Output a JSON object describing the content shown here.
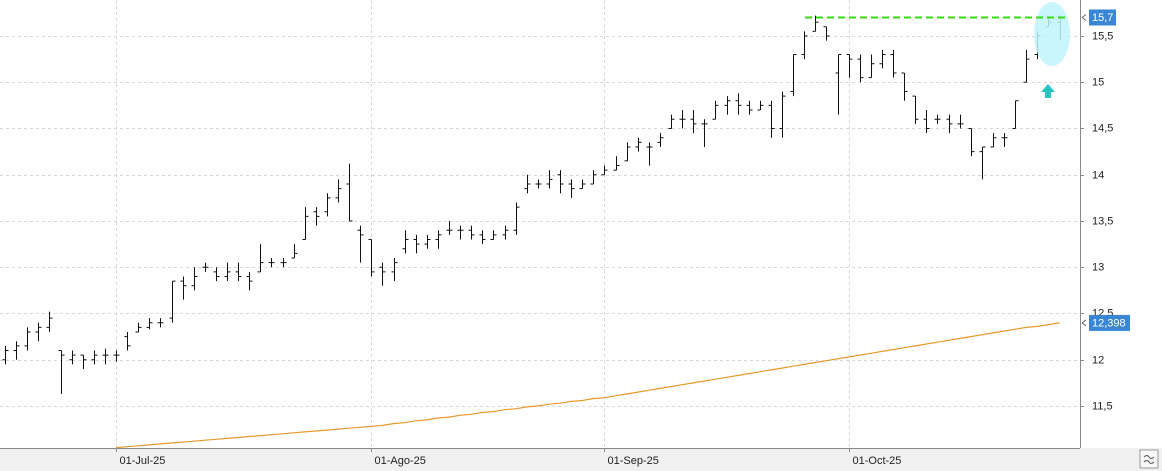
{
  "chart_data": {
    "type": "ohlc",
    "x": [
      null,
      null,
      null,
      null,
      null,
      null,
      null,
      null,
      null,
      null,
      "01-Jul-25",
      null,
      null,
      null,
      null,
      null,
      null,
      null,
      null,
      null,
      null,
      null,
      null,
      null,
      null,
      null,
      null,
      null,
      null,
      null,
      null,
      null,
      null,
      "01-Ago-25",
      null,
      null,
      null,
      null,
      null,
      null,
      null,
      null,
      null,
      null,
      null,
      null,
      null,
      null,
      null,
      null,
      null,
      null,
      null,
      null,
      "01-Sep-25",
      null,
      null,
      null,
      null,
      null,
      null,
      null,
      null,
      null,
      null,
      null,
      null,
      null,
      null,
      null,
      null,
      null,
      null,
      null,
      null,
      null,
      "01-Oct-25",
      null,
      null,
      null,
      null,
      null,
      null,
      null,
      null,
      null,
      null,
      null,
      null,
      null,
      null,
      null,
      null,
      null,
      null,
      null
    ],
    "open": [
      12.0,
      12.1,
      12.15,
      12.3,
      12.35,
      12.1,
      12.0,
      12.05,
      12.0,
      12.05,
      12.05,
      12.25,
      12.3,
      12.35,
      12.4,
      12.45,
      12.85,
      12.8,
      13.0,
      12.95,
      12.9,
      12.95,
      12.9,
      12.95,
      13.05,
      13.05,
      13.1,
      13.3,
      13.6,
      13.6,
      13.75,
      13.9,
      13.4,
      13.3,
      13.0,
      12.95,
      13.2,
      13.3,
      13.25,
      13.3,
      13.4,
      13.4,
      13.4,
      13.35,
      13.3,
      13.35,
      13.4,
      13.85,
      13.9,
      13.9,
      14.0,
      13.9,
      13.85,
      13.9,
      14.0,
      14.05,
      14.15,
      14.3,
      14.3,
      14.35,
      14.5,
      14.6,
      14.6,
      14.55,
      14.6,
      14.75,
      14.8,
      14.75,
      14.7,
      14.75,
      14.5,
      14.9,
      15.3,
      15.55,
      15.6,
      15.1,
      15.3,
      15.25,
      15.05,
      15.2,
      15.3,
      15.1,
      14.85,
      14.6,
      14.6,
      14.6,
      14.55,
      14.5,
      14.25,
      14.3,
      14.4,
      14.5,
      15.0,
      15.3,
      15.6,
      15.65
    ],
    "high": [
      12.15,
      12.2,
      12.35,
      12.4,
      12.52,
      12.1,
      12.1,
      12.05,
      12.1,
      12.12,
      12.1,
      12.3,
      12.4,
      12.45,
      12.45,
      12.85,
      12.9,
      13.0,
      13.05,
      13.0,
      13.05,
      13.05,
      12.95,
      13.25,
      13.1,
      13.1,
      13.25,
      13.65,
      13.65,
      13.8,
      13.95,
      14.12,
      13.45,
      13.3,
      13.05,
      13.1,
      13.4,
      13.35,
      13.35,
      13.4,
      13.5,
      13.45,
      13.45,
      13.4,
      13.4,
      13.45,
      13.7,
      14.0,
      13.95,
      14.05,
      14.05,
      13.95,
      13.95,
      14.05,
      14.1,
      14.2,
      14.35,
      14.4,
      14.35,
      14.45,
      14.65,
      14.7,
      14.7,
      14.6,
      14.8,
      14.85,
      14.88,
      14.8,
      14.8,
      14.8,
      14.9,
      15.3,
      15.55,
      15.72,
      15.6,
      15.3,
      15.3,
      15.3,
      15.3,
      15.35,
      15.35,
      15.1,
      14.85,
      14.7,
      14.65,
      14.65,
      14.65,
      14.5,
      14.3,
      14.45,
      14.45,
      14.8,
      15.35,
      15.55,
      15.7,
      15.72
    ],
    "low": [
      11.95,
      12.0,
      12.1,
      12.2,
      12.3,
      11.63,
      11.95,
      11.9,
      11.95,
      11.95,
      11.98,
      12.1,
      12.3,
      12.33,
      12.35,
      12.4,
      12.65,
      12.75,
      12.95,
      12.85,
      12.85,
      12.85,
      12.75,
      12.95,
      13.0,
      13.0,
      13.1,
      13.3,
      13.45,
      13.55,
      13.7,
      13.5,
      13.05,
      12.9,
      12.8,
      12.85,
      13.15,
      13.15,
      13.2,
      13.2,
      13.35,
      13.3,
      13.3,
      13.25,
      13.3,
      13.3,
      13.35,
      13.8,
      13.85,
      13.85,
      13.8,
      13.75,
      13.85,
      13.9,
      14.0,
      14.05,
      14.15,
      14.25,
      14.1,
      14.3,
      14.5,
      14.5,
      14.45,
      14.3,
      14.6,
      14.65,
      14.65,
      14.65,
      14.7,
      14.4,
      14.4,
      14.85,
      15.25,
      15.55,
      15.45,
      14.65,
      15.05,
      15.0,
      15.05,
      15.15,
      15.05,
      14.8,
      14.55,
      14.45,
      14.55,
      14.45,
      14.5,
      14.2,
      13.95,
      14.3,
      14.3,
      14.5,
      15.0,
      15.25,
      15.6,
      15.45
    ],
    "close": [
      12.1,
      12.15,
      12.3,
      12.35,
      12.45,
      12.05,
      12.05,
      12.0,
      12.05,
      12.05,
      12.05,
      12.15,
      12.35,
      12.4,
      12.4,
      12.85,
      12.8,
      12.9,
      13.0,
      12.9,
      12.95,
      12.9,
      12.85,
      13.05,
      13.05,
      13.05,
      13.15,
      13.55,
      13.55,
      13.75,
      13.85,
      13.5,
      13.35,
      12.95,
      12.95,
      13.05,
      13.3,
      13.25,
      13.3,
      13.35,
      13.4,
      13.4,
      13.35,
      13.3,
      13.35,
      13.4,
      13.65,
      13.9,
      13.9,
      13.95,
      13.9,
      13.85,
      13.9,
      14.0,
      14.05,
      14.1,
      14.3,
      14.35,
      14.3,
      14.4,
      14.6,
      14.6,
      14.55,
      14.55,
      14.75,
      14.8,
      14.75,
      14.7,
      14.75,
      14.5,
      14.85,
      15.3,
      15.5,
      15.65,
      15.5,
      15.3,
      15.25,
      15.05,
      15.2,
      15.3,
      15.1,
      14.9,
      14.6,
      14.5,
      14.6,
      14.55,
      14.55,
      14.25,
      14.3,
      14.4,
      14.4,
      14.8,
      15.25,
      15.5,
      15.65,
      15.7
    ],
    "color": "#111111",
    "ma": {
      "color": "#e89a2c",
      "last_label": "12,398",
      "values": [
        null,
        null,
        null,
        null,
        null,
        null,
        null,
        null,
        null,
        null,
        11.05,
        11.06,
        11.07,
        11.08,
        11.09,
        11.1,
        11.11,
        11.12,
        11.13,
        11.14,
        11.15,
        11.16,
        11.17,
        11.18,
        11.19,
        11.2,
        11.21,
        11.22,
        11.23,
        11.24,
        11.25,
        11.26,
        11.27,
        11.28,
        11.29,
        11.31,
        11.32,
        11.34,
        11.35,
        11.37,
        11.38,
        11.4,
        11.41,
        11.43,
        11.44,
        11.46,
        11.47,
        11.49,
        11.5,
        11.52,
        11.53,
        11.55,
        11.56,
        11.58,
        11.59,
        11.61,
        11.63,
        11.65,
        11.67,
        11.69,
        11.71,
        11.73,
        11.75,
        11.77,
        11.79,
        11.81,
        11.83,
        11.85,
        11.87,
        11.89,
        11.91,
        11.93,
        11.95,
        11.97,
        11.99,
        12.01,
        12.03,
        12.05,
        12.07,
        12.09,
        12.11,
        12.13,
        12.15,
        12.17,
        12.19,
        12.21,
        12.23,
        12.25,
        12.27,
        12.29,
        12.31,
        12.33,
        12.35,
        12.36,
        12.38,
        12.398
      ]
    },
    "level": {
      "value": 15.7,
      "label": "15,7",
      "color": "#33dd11"
    },
    "ylim": [
      11.046,
      15.889
    ],
    "yticks": [
      {
        "value": 11.5,
        "label": "11,5"
      },
      12,
      {
        "value": 12.5,
        "label": "12,5"
      },
      13,
      {
        "value": 13.5,
        "label": "13,5"
      },
      14,
      {
        "value": 14.5,
        "label": "14,5"
      },
      15,
      {
        "value": 15.5,
        "label": "15,5"
      }
    ],
    "grid": true
  }
}
